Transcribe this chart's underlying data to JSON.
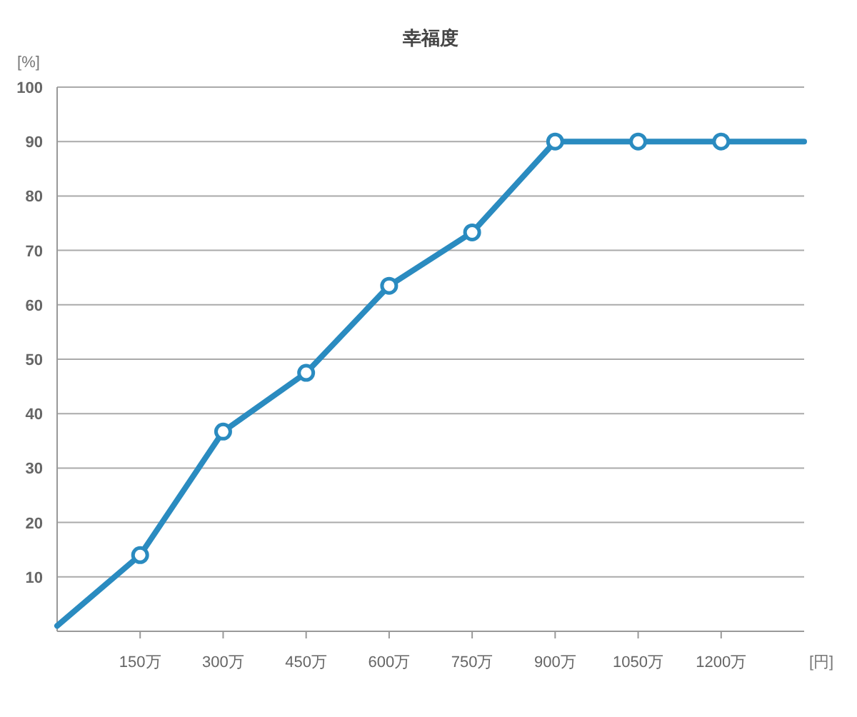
{
  "chart_data": {
    "type": "line",
    "title": "幸福度",
    "ylabel": "[%]",
    "xlabel": "[円]",
    "x": [
      0,
      150,
      300,
      450,
      600,
      750,
      900,
      1050,
      1200,
      1350
    ],
    "series": [
      {
        "color": "#2a8bc0",
        "values": [
          1,
          14,
          36.7,
          47.5,
          63.5,
          73.3,
          90,
          90,
          90,
          90
        ]
      }
    ],
    "xlim": [
      0,
      1350
    ],
    "xticks": [
      {
        "value": 150,
        "label": "150万"
      },
      {
        "value": 300,
        "label": "300万"
      },
      {
        "value": 450,
        "label": "450万"
      },
      {
        "value": 600,
        "label": "600万"
      },
      {
        "value": 750,
        "label": "750万"
      },
      {
        "value": 900,
        "label": "900万"
      },
      {
        "value": 1050,
        "label": "1050万"
      },
      {
        "value": 1200,
        "label": "1200万"
      }
    ],
    "ylim": [
      0,
      100
    ],
    "yticks": [
      10,
      20,
      30,
      40,
      50,
      60,
      70,
      80,
      90,
      100
    ],
    "grid": "y",
    "marker": "circle",
    "line_style": "solid"
  }
}
